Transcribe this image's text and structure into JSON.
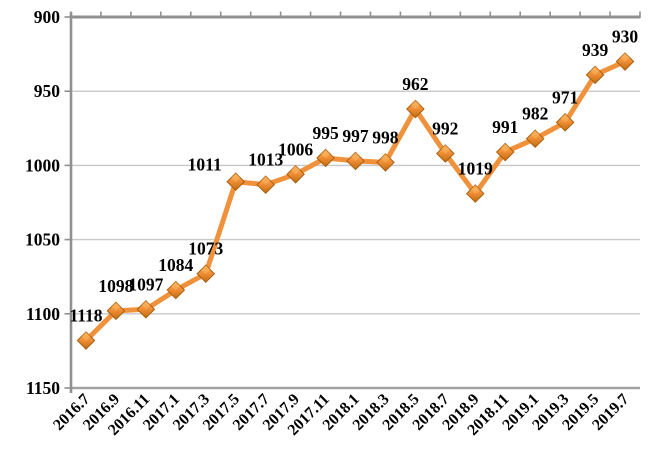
{
  "chart_data": {
    "type": "line",
    "title": "",
    "xlabel": "",
    "ylabel": "",
    "categories": [
      "2016.7",
      "2016.9",
      "2016.11",
      "2017.1",
      "2017.3",
      "2017.5",
      "2017.7",
      "2017.9",
      "2017.11",
      "2018.1",
      "2018.3",
      "2018.5",
      "2018.7",
      "2018.9",
      "2018.11",
      "2019.1",
      "2019.3",
      "2019.5",
      "2019.7"
    ],
    "series": [
      {
        "name": "value",
        "values": [
          1118,
          1098,
          1097,
          1084,
          1073,
          1011,
          1013,
          1006,
          995,
          997,
          998,
          962,
          992,
          1019,
          991,
          982,
          971,
          939,
          930
        ]
      }
    ],
    "data_labels": {
      "show": true,
      "position": "above"
    },
    "y_axis": {
      "min": 900,
      "max": 1150,
      "tick_interval": 50,
      "reversed": true,
      "ticks": [
        900,
        950,
        1000,
        1050,
        1100,
        1150
      ],
      "tick_labels": [
        "900",
        "950",
        "1000",
        "1050",
        "1100",
        "1150"
      ]
    },
    "x_axis": {
      "position": "top",
      "label_rotation_deg": -45,
      "labels_at_bottom": true
    },
    "grid": "horizontal",
    "legend": "none",
    "marker": "diamond-3d",
    "colors": {
      "line": "#F0913C",
      "marker_highlight": "#FCB55F",
      "marker_mid": "#EF8D36",
      "marker_shadow": "#C26C0E",
      "marker_edge": "#A85F10",
      "axis": "#909090",
      "bottom_border": "#A2A2A2",
      "gridline": "#C8C8C8",
      "label_text": "#000000",
      "background": "#FFFFFF"
    },
    "label_offsets": {
      "5": {
        "dx": -31,
        "dy": 8
      }
    }
  }
}
